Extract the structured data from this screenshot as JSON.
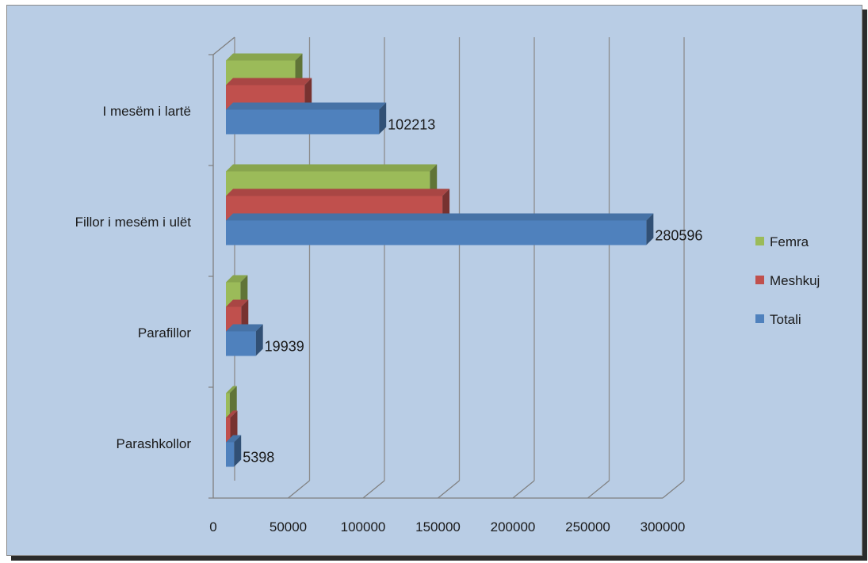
{
  "chart_data": {
    "type": "bar",
    "orientation": "horizontal",
    "style": "3d-clustered",
    "title": "",
    "xlabel": "",
    "ylabel": "",
    "categories": [
      "Parashkollor",
      "Parafillor",
      "Fillor i mesëm i ulët",
      "I mesëm i lartë"
    ],
    "series": [
      {
        "name": "Totali",
        "color": "#4f81bd",
        "values": [
          5398,
          19939,
          280596,
          102213
        ],
        "labels": [
          "5398",
          "19939",
          "280596",
          "102213"
        ]
      },
      {
        "name": "Meshkuj",
        "color": "#c0504d",
        "values": [
          2900,
          10200,
          144500,
          52500
        ]
      },
      {
        "name": "Femra",
        "color": "#9bbb59",
        "values": [
          2500,
          9700,
          136100,
          46300
        ]
      }
    ],
    "xlim": [
      0,
      300000
    ],
    "xticks": [
      "0",
      "50000",
      "100000",
      "150000",
      "200000",
      "250000",
      "300000"
    ],
    "grid": true,
    "legend_position": "right",
    "legend_order": [
      "Femra",
      "Meshkuj",
      "Totali"
    ]
  }
}
